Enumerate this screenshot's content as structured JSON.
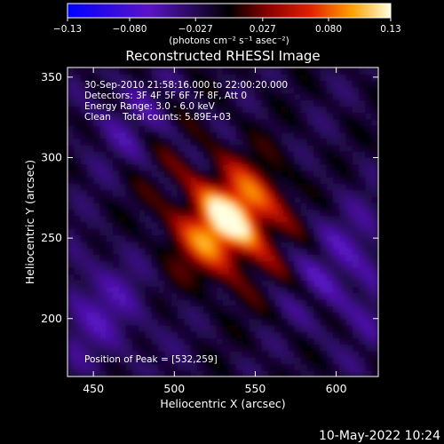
{
  "chart_data": {
    "type": "heatmap",
    "title": "Reconstructed RHESSI Image",
    "xlabel": "Heliocentric X (arcsec)",
    "ylabel": "Heliocentric Y (arcsec)",
    "xlim": [
      434,
      626
    ],
    "ylim": [
      164,
      356
    ],
    "xticks": [
      450,
      500,
      550,
      600
    ],
    "yticks": [
      200,
      250,
      300,
      350
    ],
    "colorbar": {
      "range": [
        -0.13,
        0.13
      ],
      "ticks": [
        -0.13,
        -0.08,
        -0.027,
        0.027,
        0.08,
        0.13
      ],
      "tick_labels": [
        "−0.13",
        "−0.080",
        "−0.027",
        "0.027",
        "0.080",
        "0.13"
      ],
      "unit_label": "(photons cm⁻² s⁻¹ asec⁻²)"
    },
    "annotations": [
      "30-Sep-2010 21:58:16.000 to 22:00:20.000",
      "Detectors: 3F 4F 5F 6F 7F 8F, Att 0",
      "Energy Range: 3.0 - 6.0 keV",
      "Clean    Total counts: 5.89E+03",
      "Position of Peak = [532,259]"
    ],
    "peak": {
      "x": 532,
      "y": 259
    },
    "peak_value": 0.13
  },
  "footer": {
    "timestamp": "10-May-2022 10:24"
  }
}
